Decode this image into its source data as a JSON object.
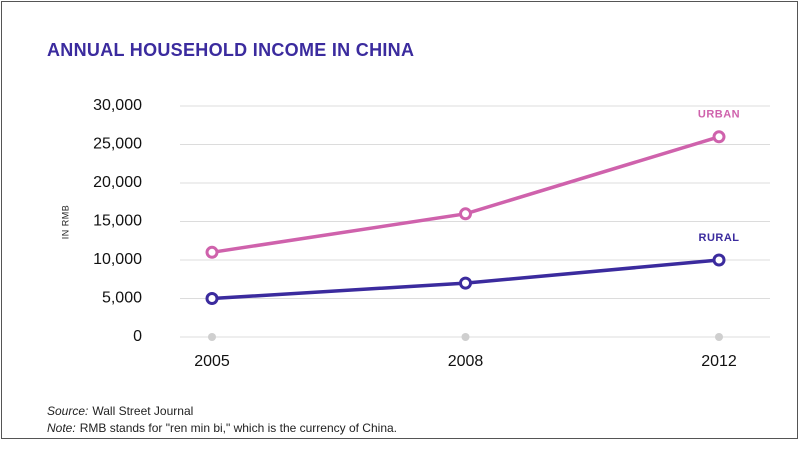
{
  "chart_data": {
    "type": "line",
    "title": "ANNUAL HOUSEHOLD INCOME IN CHINA",
    "y_label": "IN RMB",
    "categories": [
      "2005",
      "2008",
      "2012"
    ],
    "series": [
      {
        "name": "URBAN",
        "color": "#cf62ac",
        "values": [
          11000,
          16000,
          26000
        ]
      },
      {
        "name": "RURAL",
        "color": "#3b2b9e",
        "values": [
          5000,
          7000,
          10000
        ]
      }
    ],
    "ylim": [
      0,
      30000
    ],
    "yticks": [
      0,
      {
        "value": 5000,
        "label": "5,000"
      },
      {
        "value": 10000,
        "label": "10,000"
      },
      {
        "value": 15000,
        "label": "15,000"
      },
      {
        "value": 20000,
        "label": "20,000"
      },
      {
        "value": 25000,
        "label": "25,000"
      },
      {
        "value": 30000,
        "label": "30,000"
      }
    ],
    "grid": true
  },
  "footnotes": [
    {
      "label": "Source:",
      "text": "Wall Street Journal"
    },
    {
      "label": "Note:",
      "text": "RMB stands for \"ren min bi,\" which is the currency of China."
    }
  ]
}
